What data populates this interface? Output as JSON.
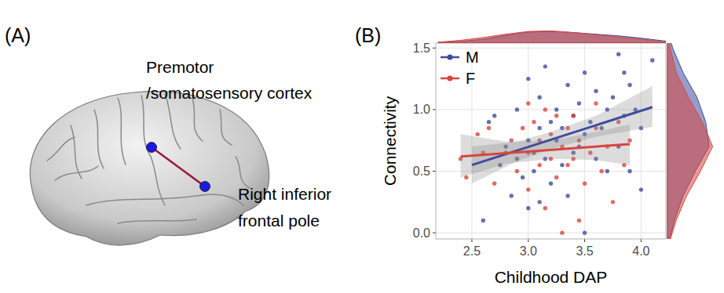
{
  "diagram": {
    "label": "(A)",
    "nodes": [
      {
        "label": [
          "Premotor",
          "/somatosensory cortex"
        ]
      },
      {
        "label": [
          "Right inferior",
          "frontal pole"
        ]
      }
    ]
  },
  "chart_data": {
    "type": "scatter",
    "panel_label": "(B)",
    "x_label": "Childhood DAP",
    "y_label": "Connectivity",
    "xlim": [
      2.18,
      4.22
    ],
    "ylim": [
      -0.05,
      1.54
    ],
    "xticks": [
      2.5,
      {
        "value": 3,
        "label": "3.0"
      },
      3.5,
      {
        "value": 4,
        "label": "4.0"
      }
    ],
    "yticks": [
      {
        "value": 0,
        "label": "0.0"
      },
      {
        "value": 0.5,
        "label": "0.5"
      },
      {
        "value": 1,
        "label": "1.0"
      },
      {
        "value": 1.5,
        "label": "1.5"
      }
    ],
    "grid": true,
    "legend": "top-left",
    "marker": "circle",
    "density_x_lim": [
      0,
      1.2
    ],
    "density_y_lim": [
      0,
      1.4
    ],
    "series": [
      {
        "name": "M",
        "color": "#3f4c9e",
        "x": [
          2.6,
          2.65,
          2.75,
          2.8,
          2.85,
          2.9,
          2.9,
          2.95,
          3.0,
          3.0,
          3.05,
          3.05,
          3.1,
          3.1,
          3.1,
          3.15,
          3.2,
          3.2,
          3.25,
          3.25,
          3.3,
          3.3,
          3.35,
          3.35,
          3.4,
          3.4,
          3.45,
          3.45,
          3.5,
          3.5,
          3.5,
          3.55,
          3.6,
          3.6,
          3.65,
          3.7,
          3.7,
          3.75,
          3.8,
          3.8,
          3.85,
          3.85,
          3.9,
          3.9,
          3.95,
          4.0,
          4.1,
          2.7,
          3.15,
          3.0,
          4.0
        ],
        "values": [
          0.1,
          0.9,
          0.55,
          0.7,
          0.3,
          0.6,
          1.0,
          0.45,
          1.25,
          0.75,
          0.5,
          0.65,
          0.25,
          0.85,
          1.1,
          0.6,
          0.9,
          0.4,
          0.75,
          1.0,
          0.55,
          0.85,
          1.2,
          0.3,
          0.65,
          0.95,
          1.05,
          0.7,
          0.0,
          1.3,
          0.8,
          0.9,
          0.6,
          1.15,
          0.85,
          1.0,
          0.5,
          1.1,
          1.45,
          0.7,
          1.3,
          0.95,
          0.5,
          1.2,
          1.0,
          0.85,
          1.4,
          0.95,
          1.35,
          0.2,
          0.35
        ],
        "fit": {
          "x": [
            2.5,
            4.1
          ],
          "values": [
            0.55,
            1.02
          ]
        },
        "band": {
          "x": [
            2.5,
            2.9,
            3.2,
            3.6,
            4.1
          ],
          "lower": [
            0.4,
            0.58,
            0.68,
            0.78,
            0.86
          ],
          "upper": [
            0.7,
            0.74,
            0.82,
            0.95,
            1.19
          ]
        },
        "density_x": {
          "x": [
            2.2,
            2.4,
            2.6,
            2.8,
            3.0,
            3.2,
            3.4,
            3.6,
            3.8,
            4.0,
            4.2,
            4.3
          ],
          "values": [
            0.05,
            0.15,
            0.35,
            0.7,
            1.0,
            1.05,
            0.95,
            0.8,
            0.65,
            0.45,
            0.2,
            0.1
          ]
        },
        "density_y": {
          "y": [
            -0.1,
            0.1,
            0.3,
            0.5,
            0.7,
            0.9,
            1.1,
            1.3,
            1.5,
            1.6
          ],
          "values": [
            0.02,
            0.2,
            0.45,
            0.8,
            1.2,
            1.1,
            0.85,
            0.45,
            0.15,
            0.05
          ]
        }
      },
      {
        "name": "F",
        "color": "#d9453d",
        "x": [
          2.4,
          2.45,
          2.55,
          2.65,
          2.7,
          2.8,
          2.85,
          2.9,
          2.95,
          3.0,
          3.0,
          3.05,
          3.1,
          3.1,
          3.15,
          3.15,
          3.2,
          3.2,
          3.25,
          3.25,
          3.3,
          3.3,
          3.35,
          3.35,
          3.4,
          3.45,
          3.45,
          3.5,
          3.55,
          3.6,
          3.65,
          3.7,
          3.75,
          3.8,
          3.85,
          3.9,
          2.6,
          3.0,
          3.4,
          3.6
        ],
        "values": [
          0.6,
          0.45,
          0.8,
          0.85,
          0.4,
          0.65,
          0.75,
          0.5,
          0.85,
          0.35,
          0.65,
          0.9,
          0.55,
          0.75,
          1.0,
          0.2,
          0.6,
          0.8,
          0.45,
          0.95,
          0.7,
          0.0,
          0.55,
          0.85,
          0.6,
          0.1,
          0.75,
          0.4,
          0.65,
          0.85,
          0.5,
          0.7,
          0.25,
          0.9,
          0.55,
          0.75,
          0.65,
          1.05,
          0.95,
          1.05
        ],
        "fit": {
          "x": [
            2.4,
            3.9
          ],
          "values": [
            0.62,
            0.72
          ]
        },
        "band": {
          "x": [
            2.4,
            2.8,
            3.2,
            3.6,
            3.9
          ],
          "lower": [
            0.45,
            0.56,
            0.6,
            0.59,
            0.55
          ],
          "upper": [
            0.8,
            0.74,
            0.75,
            0.82,
            0.88
          ]
        },
        "density_x": {
          "x": [
            2.2,
            2.4,
            2.6,
            2.8,
            3.0,
            3.2,
            3.4,
            3.6,
            3.8,
            4.0,
            4.2,
            4.3
          ],
          "values": [
            0.08,
            0.25,
            0.5,
            0.8,
            1.05,
            1.1,
            0.95,
            0.75,
            0.55,
            0.35,
            0.12,
            0.06
          ]
        },
        "density_y": {
          "y": [
            -0.1,
            0.1,
            0.3,
            0.5,
            0.7,
            0.9,
            1.1,
            1.3,
            1.5,
            1.6
          ],
          "values": [
            0.03,
            0.25,
            0.55,
            0.95,
            1.3,
            1.0,
            0.6,
            0.25,
            0.08,
            0.02
          ]
        }
      }
    ]
  }
}
